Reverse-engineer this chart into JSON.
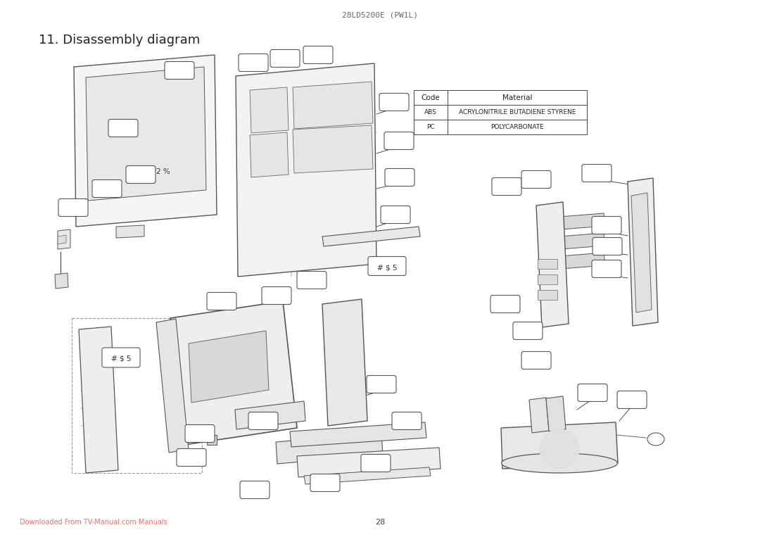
{
  "title": "28LD5200E (PW1L)",
  "section_title": "11. Disassembly diagram",
  "page_number": "28",
  "footer_link": "Downloaded From TV-Manual.com Manuals",
  "footer_link_color": "#FF6666",
  "bg_color": "#ffffff",
  "table_headers": [
    "Code",
    "Material"
  ],
  "table_rows": [
    [
      "ABS",
      "ACRYLONITRILE BUTADIENE STYRENE"
    ],
    [
      "PC",
      "POLYCARBONATE"
    ]
  ],
  "label_hash_s5_1": "# $ 5",
  "label_hash_s5_2": "# $ 5",
  "label_2percent": "2 %"
}
